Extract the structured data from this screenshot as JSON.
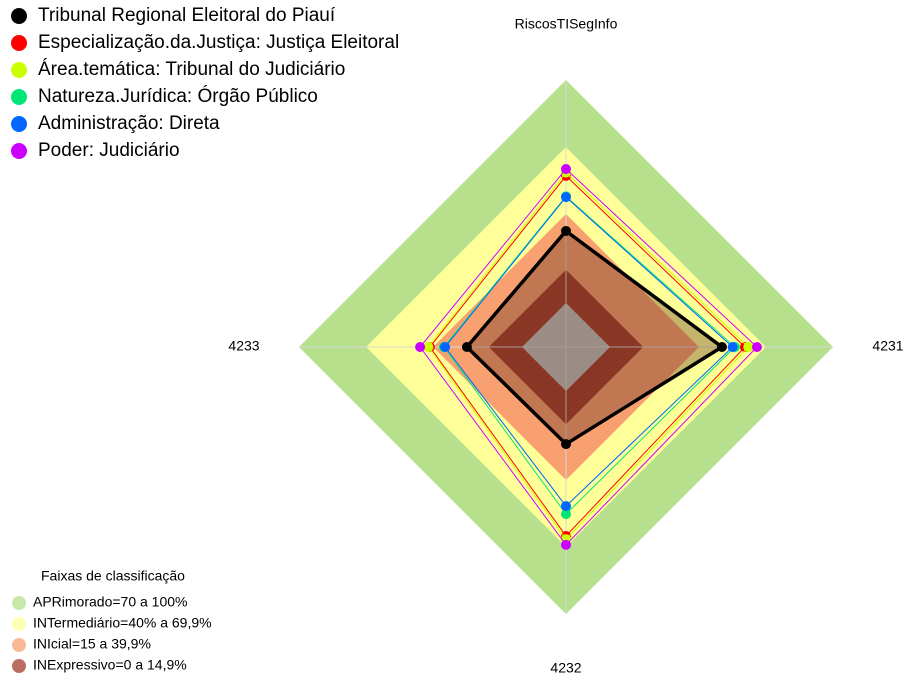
{
  "chart_data": {
    "type": "radar",
    "axes": [
      "RiscosTISegInfo",
      "4231",
      "4232",
      "4233"
    ],
    "rlim": [
      0,
      100
    ],
    "series": [
      {
        "name": "Tribunal Regional Eleitoral do Piauí",
        "color": "#000000",
        "fill": "#5a2a1a",
        "values": [
          32.3,
          50.2,
          23.8,
          24.7
        ]
      },
      {
        "name": "Especialização.da.Justiça: Justiça Eleitoral",
        "color": "#ff0000",
        "values": [
          57,
          60.5,
          65,
          41.3
        ]
      },
      {
        "name": "Área.temática: Tribunal do Judiciário",
        "color": "#ccff00",
        "values": [
          58.5,
          62,
          66.5,
          42
        ]
      },
      {
        "name": "Natureza.Jurídica: Órgão Público",
        "color": "#00e676",
        "values": [
          47.8,
          56,
          55.2,
          35
        ]
      },
      {
        "name": "Administração: Direta",
        "color": "#0066ff",
        "values": [
          47.5,
          55,
          51.6,
          34.5
        ]
      },
      {
        "name": "Poder: Judiciário",
        "color": "#cc00ff",
        "values": [
          60.1,
          65.9,
          69,
          45.7
        ]
      }
    ],
    "bands_title": "Faixas de classificação",
    "bands": [
      {
        "label": "APRimorado=70 a 100%",
        "from": 70,
        "to": 100,
        "color": "#b6e08c"
      },
      {
        "label": "INTermediário=40% a 69,9%",
        "from": 40,
        "to": 69.9,
        "color": "#ffff99"
      },
      {
        "label": "INIcial=15 a 39,9%",
        "from": 15,
        "to": 39.9,
        "color": "#f9a070"
      },
      {
        "label": "INExpressivo=0 a 14,9%",
        "from": 0,
        "to": 14.9,
        "color": "#a53c2c"
      }
    ]
  }
}
